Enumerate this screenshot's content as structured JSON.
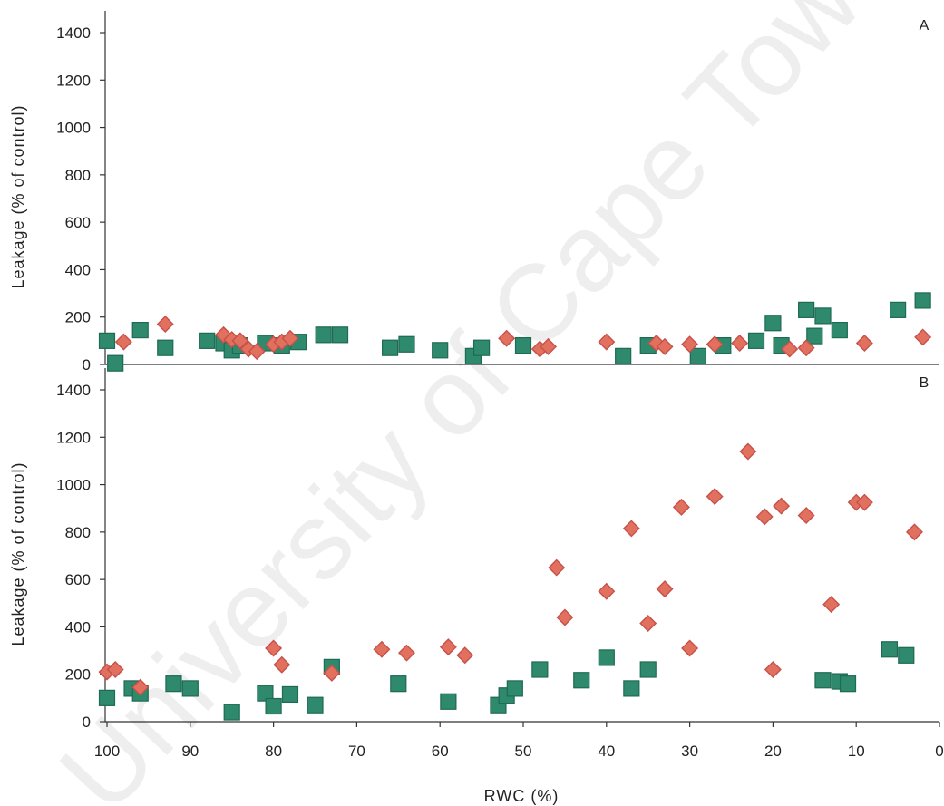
{
  "watermark": "University of Cape Town",
  "colors": {
    "square_fill": "#2f8a6d",
    "square_stroke": "#1e6a52",
    "diamond_fill": "#e2705e",
    "diamond_stroke": "#c8504a"
  },
  "chart_data": [
    {
      "type": "scatter",
      "panel_label": "A",
      "ylabel": "Leakage (% of control)",
      "xlabel": "",
      "xlim": [
        100,
        0
      ],
      "ylim": [
        0,
        1400
      ],
      "yticks": [
        0,
        200,
        400,
        600,
        800,
        1000,
        1200,
        1400
      ],
      "xticks": [],
      "series": [
        {
          "marker": "square",
          "points": [
            [
              100,
              100
            ],
            [
              99,
              5
            ],
            [
              96,
              145
            ],
            [
              93,
              70
            ],
            [
              88,
              100
            ],
            [
              86,
              90
            ],
            [
              85,
              60
            ],
            [
              84,
              80
            ],
            [
              81,
              90
            ],
            [
              79,
              80
            ],
            [
              77,
              95
            ],
            [
              74,
              125
            ],
            [
              72,
              125
            ],
            [
              66,
              70
            ],
            [
              64,
              85
            ],
            [
              60,
              60
            ],
            [
              56,
              35
            ],
            [
              55,
              70
            ],
            [
              50,
              80
            ],
            [
              38,
              35
            ],
            [
              35,
              80
            ],
            [
              29,
              35
            ],
            [
              26,
              80
            ],
            [
              22,
              100
            ],
            [
              20,
              175
            ],
            [
              19,
              80
            ],
            [
              16,
              230
            ],
            [
              15,
              120
            ],
            [
              14,
              205
            ],
            [
              12,
              145
            ],
            [
              5,
              230
            ],
            [
              2,
              270
            ]
          ]
        },
        {
          "marker": "diamond",
          "points": [
            [
              98,
              95
            ],
            [
              93,
              170
            ],
            [
              86,
              125
            ],
            [
              85,
              105
            ],
            [
              84,
              100
            ],
            [
              83,
              65
            ],
            [
              82,
              55
            ],
            [
              80,
              85
            ],
            [
              79,
              95
            ],
            [
              78,
              110
            ],
            [
              52,
              110
            ],
            [
              48,
              65
            ],
            [
              47,
              75
            ],
            [
              40,
              95
            ],
            [
              34,
              90
            ],
            [
              33,
              75
            ],
            [
              30,
              85
            ],
            [
              27,
              85
            ],
            [
              24,
              90
            ],
            [
              18,
              65
            ],
            [
              16,
              70
            ],
            [
              9,
              90
            ],
            [
              2,
              115
            ]
          ]
        }
      ]
    },
    {
      "type": "scatter",
      "panel_label": "B",
      "ylabel": "Leakage (% of control)",
      "xlabel": "RWC (%)",
      "xlim": [
        100,
        0
      ],
      "ylim": [
        0,
        1400
      ],
      "yticks": [
        0,
        200,
        400,
        600,
        800,
        1000,
        1200,
        1400
      ],
      "xticks": [
        100,
        90,
        80,
        70,
        60,
        50,
        40,
        30,
        20,
        10,
        0
      ],
      "series": [
        {
          "marker": "square",
          "points": [
            [
              100,
              100
            ],
            [
              97,
              140
            ],
            [
              96,
              120
            ],
            [
              92,
              160
            ],
            [
              90,
              140
            ],
            [
              85,
              40
            ],
            [
              81,
              120
            ],
            [
              80,
              65
            ],
            [
              78,
              115
            ],
            [
              75,
              70
            ],
            [
              73,
              230
            ],
            [
              65,
              160
            ],
            [
              59,
              85
            ],
            [
              53,
              70
            ],
            [
              52,
              110
            ],
            [
              51,
              140
            ],
            [
              48,
              220
            ],
            [
              43,
              175
            ],
            [
              40,
              270
            ],
            [
              37,
              140
            ],
            [
              35,
              220
            ],
            [
              14,
              175
            ],
            [
              12,
              170
            ],
            [
              11,
              160
            ],
            [
              6,
              305
            ],
            [
              4,
              280
            ]
          ]
        },
        {
          "marker": "diamond",
          "points": [
            [
              100,
              210
            ],
            [
              99,
              220
            ],
            [
              96,
              145
            ],
            [
              80,
              310
            ],
            [
              79,
              240
            ],
            [
              73,
              205
            ],
            [
              67,
              305
            ],
            [
              64,
              290
            ],
            [
              59,
              315
            ],
            [
              57,
              280
            ],
            [
              46,
              650
            ],
            [
              45,
              440
            ],
            [
              40,
              550
            ],
            [
              37,
              815
            ],
            [
              35,
              415
            ],
            [
              33,
              560
            ],
            [
              31,
              905
            ],
            [
              30,
              310
            ],
            [
              27,
              950
            ],
            [
              23,
              1140
            ],
            [
              21,
              865
            ],
            [
              20,
              220
            ],
            [
              19,
              910
            ],
            [
              16,
              870
            ],
            [
              13,
              495
            ],
            [
              10,
              925
            ],
            [
              9,
              925
            ],
            [
              3,
              800
            ]
          ]
        }
      ]
    }
  ]
}
